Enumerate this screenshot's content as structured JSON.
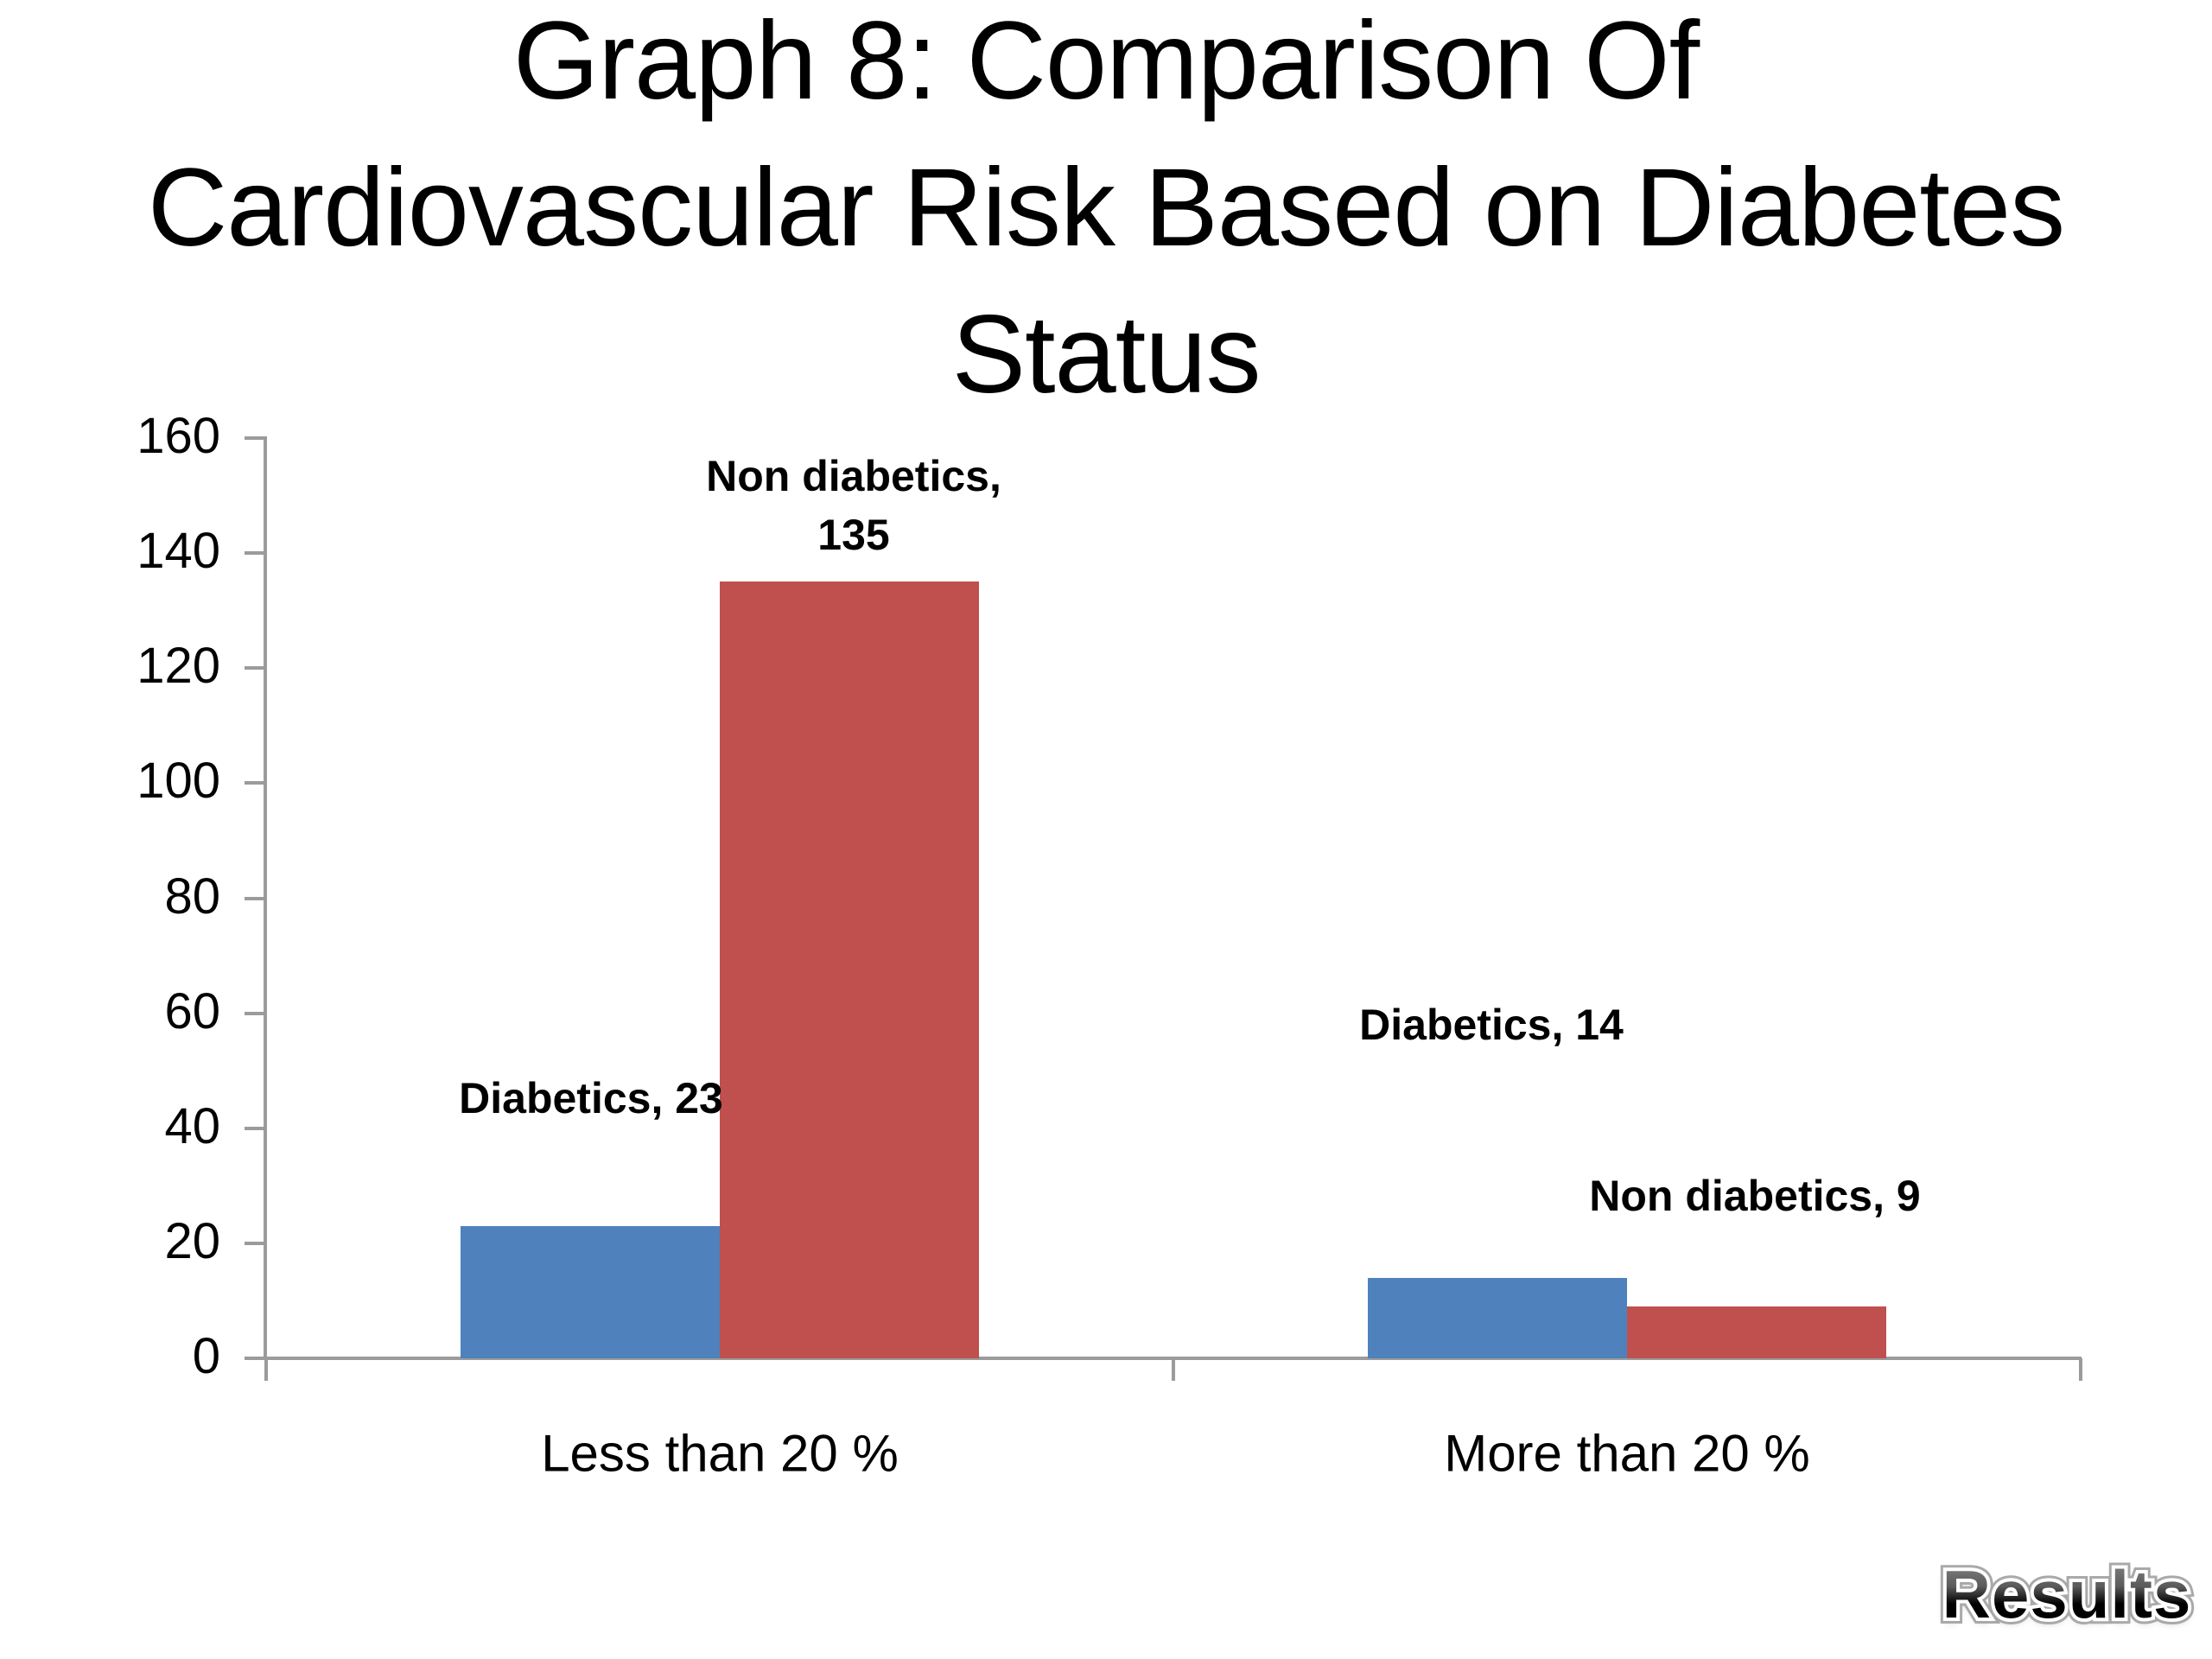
{
  "slide": {
    "title_lines": [
      "Graph 8: Comparison Of",
      "Cardiovascular Risk Based on Diabetes",
      "Status"
    ],
    "footer_label": "Results"
  },
  "chart_data": {
    "type": "bar",
    "title": "Graph 8: Comparison Of Cardiovascular Risk Based on Diabetes Status",
    "categories": [
      "Less than 20 %",
      "More than 20 %"
    ],
    "series": [
      {
        "name": "Diabetics",
        "color": "#4F81BD",
        "values": [
          23,
          14
        ]
      },
      {
        "name": "Non diabetics",
        "color": "#C0504D",
        "values": [
          135,
          9
        ]
      }
    ],
    "annotations": {
      "diabetics_less": "Diabetics, 23",
      "nondiabetics_less": "Non diabetics,\n135",
      "diabetics_more": "Diabetics, 14",
      "nondiabetics_more": "Non diabetics, 9"
    },
    "xlabel": "",
    "ylabel": "",
    "ylim": [
      0,
      160
    ],
    "ytick_step": 20,
    "yticks": [
      0,
      20,
      40,
      60,
      80,
      100,
      120,
      140,
      160
    ],
    "grid": false,
    "legend": "none",
    "axis_color": "#9b9b9b",
    "label_color": "#000000"
  }
}
